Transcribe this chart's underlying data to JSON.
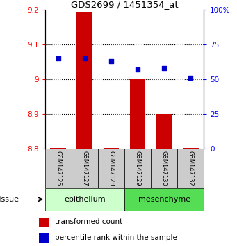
{
  "title": "GDS2699 / 1451354_at",
  "samples": [
    "GSM147125",
    "GSM147127",
    "GSM147128",
    "GSM147129",
    "GSM147130",
    "GSM147132"
  ],
  "transformed_count": [
    8.802,
    9.195,
    8.803,
    9.0,
    8.9,
    8.802
  ],
  "percentile_rank": [
    65,
    65,
    63,
    57,
    58,
    51
  ],
  "baseline": 8.8,
  "left_ylim": [
    8.8,
    9.2
  ],
  "right_ylim": [
    0,
    100
  ],
  "left_yticks": [
    8.8,
    8.9,
    9.0,
    9.1,
    9.2
  ],
  "right_yticks": [
    0,
    25,
    50,
    75,
    100
  ],
  "left_ytick_labels": [
    "8.8",
    "8.9",
    "9",
    "9.1",
    "9.2"
  ],
  "right_ytick_labels": [
    "0",
    "25",
    "50",
    "75",
    "100%"
  ],
  "bar_color": "#cc0000",
  "dot_color": "#0000cc",
  "epi_color": "#ccffcc",
  "mes_color": "#55dd55",
  "tissue_label": "tissue",
  "legend_items": [
    {
      "label": "transformed count",
      "color": "#cc0000"
    },
    {
      "label": "percentile rank within the sample",
      "color": "#0000cc"
    }
  ],
  "grid_yticks": [
    8.9,
    9.0,
    9.1
  ],
  "bar_width": 0.6,
  "xticklabel_area_color": "#cccccc"
}
